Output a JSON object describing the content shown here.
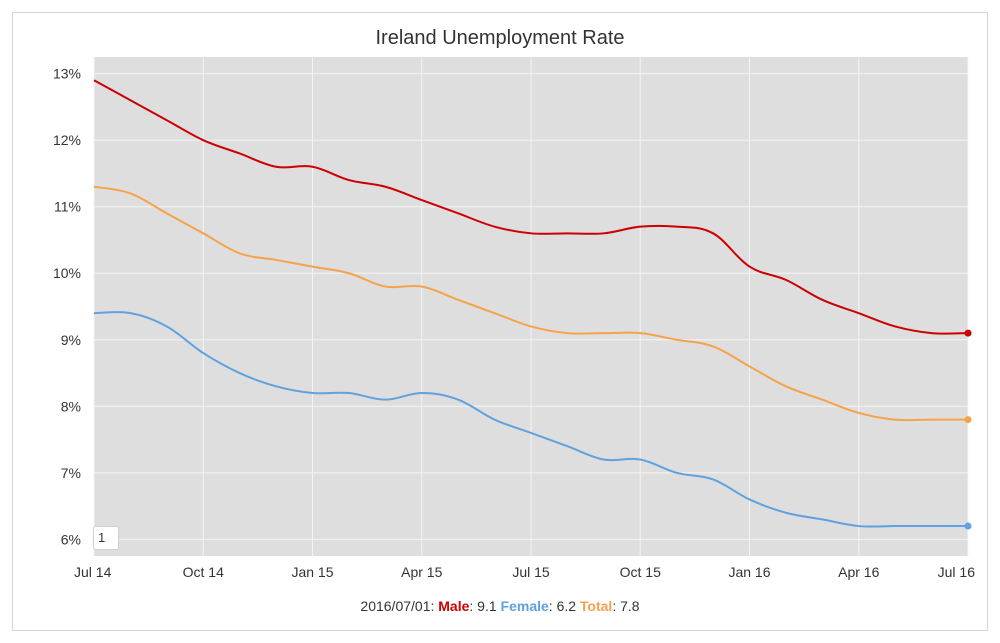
{
  "chart_data": {
    "type": "line",
    "title": "Ireland Unemployment Rate",
    "xlabel": "",
    "ylabel": "",
    "x_ticks": [
      "Jul 14",
      "Oct 14",
      "Jan 15",
      "Apr 15",
      "Jul 15",
      "Oct 15",
      "Jan 16",
      "Apr 16",
      "Jul 16"
    ],
    "y_ticks": [
      "6%",
      "7%",
      "8%",
      "9%",
      "10%",
      "11%",
      "12%",
      "13%"
    ],
    "ylim": [
      5.75,
      13.25
    ],
    "x": [
      "2014-07",
      "2014-08",
      "2014-09",
      "2014-10",
      "2014-11",
      "2014-12",
      "2015-01",
      "2015-02",
      "2015-03",
      "2015-04",
      "2015-05",
      "2015-06",
      "2015-07",
      "2015-08",
      "2015-09",
      "2015-10",
      "2015-11",
      "2015-12",
      "2016-01",
      "2016-02",
      "2016-03",
      "2016-04",
      "2016-05",
      "2016-06",
      "2016-07"
    ],
    "series": [
      {
        "name": "Male",
        "color": "#cc0000",
        "values": [
          12.9,
          12.6,
          12.3,
          12.0,
          11.8,
          11.6,
          11.6,
          11.4,
          11.3,
          11.1,
          10.9,
          10.7,
          10.6,
          10.6,
          10.6,
          10.7,
          10.7,
          10.6,
          10.1,
          9.9,
          9.6,
          9.4,
          9.2,
          9.1,
          9.1
        ]
      },
      {
        "name": "Total",
        "color": "#f5a34a",
        "values": [
          11.3,
          11.2,
          10.9,
          10.6,
          10.3,
          10.2,
          10.1,
          10.0,
          9.8,
          9.8,
          9.6,
          9.4,
          9.2,
          9.1,
          9.1,
          9.1,
          9.0,
          8.9,
          8.6,
          8.3,
          8.1,
          7.9,
          7.8,
          7.8,
          7.8
        ]
      },
      {
        "name": "Female",
        "color": "#5fa2dd",
        "values": [
          9.4,
          9.4,
          9.2,
          8.8,
          8.5,
          8.3,
          8.2,
          8.2,
          8.1,
          8.2,
          8.1,
          7.8,
          7.6,
          7.4,
          7.2,
          7.2,
          7.0,
          6.9,
          6.6,
          6.4,
          6.3,
          6.2,
          6.2,
          6.2,
          6.2
        ]
      }
    ],
    "grid": true,
    "background": "#dedede"
  },
  "legend": {
    "date": "2016/07/01",
    "male_label": "Male",
    "male_value": "9.1",
    "female_label": "Female",
    "female_value": "6.2",
    "total_label": "Total",
    "total_value": "7.8"
  },
  "range_input": {
    "value": "1"
  }
}
